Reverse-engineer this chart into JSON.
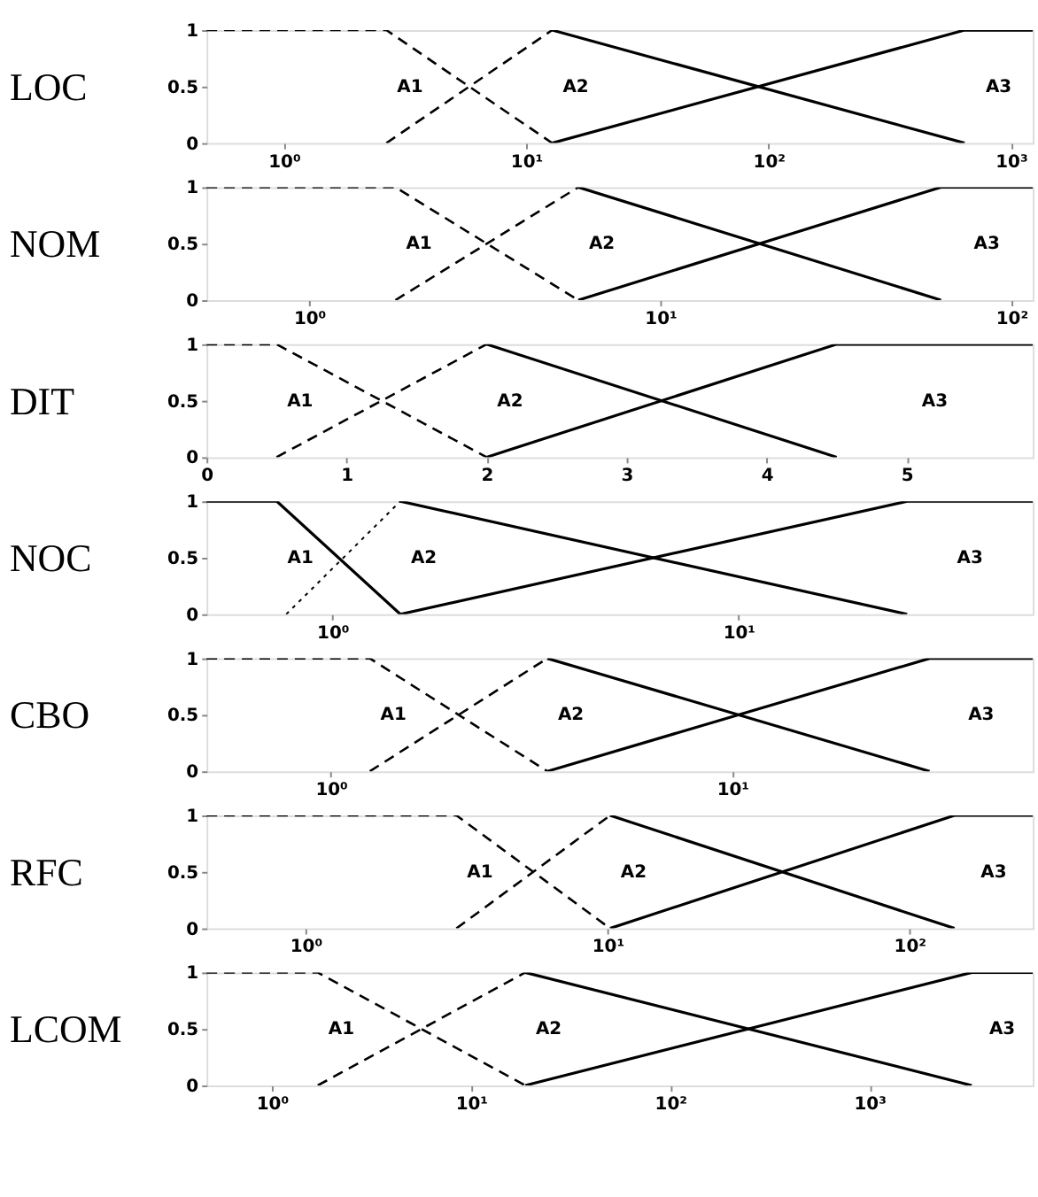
{
  "chart_data": [
    {
      "type": "line",
      "ylabel": "LOC",
      "log": "x",
      "xlim": [
        0.48,
        1230
      ],
      "ylim": [
        0,
        1
      ],
      "yticks": [
        0,
        0.5,
        1
      ],
      "grid": false,
      "xticks": [
        {
          "value": 1,
          "label": "10⁰"
        },
        {
          "value": 10,
          "label": "10¹"
        },
        {
          "value": 100,
          "label": "10²"
        },
        {
          "value": 1000,
          "label": "10³"
        }
      ],
      "series": [
        {
          "color": "#000000",
          "line_style": "dashed",
          "x": [
            0.48,
            2.65,
            12.8
          ],
          "values": [
            1,
            1,
            0
          ]
        },
        {
          "color": "#000000",
          "line_style": "dashed",
          "x": [
            2.65,
            12.8
          ],
          "values": [
            0,
            1
          ]
        },
        {
          "color": "#000000",
          "line_style": "solid",
          "x": [
            12.8,
            644
          ],
          "values": [
            1,
            0
          ]
        },
        {
          "color": "#000000",
          "line_style": "solid",
          "x": [
            12.8,
            644,
            1230
          ],
          "values": [
            0,
            1,
            1
          ]
        }
      ],
      "annotations": [
        "A1",
        "A2",
        "A3"
      ]
    },
    {
      "type": "line",
      "ylabel": "NOM",
      "log": "x",
      "xlim": [
        0.51,
        115
      ],
      "ylim": [
        0,
        1
      ],
      "yticks": [
        0,
        0.5,
        1
      ],
      "grid": false,
      "xticks": [
        {
          "value": 1,
          "label": "10⁰"
        },
        {
          "value": 10,
          "label": "10¹"
        },
        {
          "value": 100,
          "label": "10²"
        }
      ],
      "series": [
        {
          "color": "#000000",
          "line_style": "dashed",
          "x": [
            0.51,
            1.76,
            5.84
          ],
          "values": [
            1,
            1,
            0
          ]
        },
        {
          "color": "#000000",
          "line_style": "dashed",
          "x": [
            1.76,
            5.84
          ],
          "values": [
            0,
            1
          ]
        },
        {
          "color": "#000000",
          "line_style": "solid",
          "x": [
            5.84,
            63
          ],
          "values": [
            1,
            0
          ]
        },
        {
          "color": "#000000",
          "line_style": "solid",
          "x": [
            5.84,
            63,
            115
          ],
          "values": [
            0,
            1,
            1
          ]
        }
      ],
      "annotations": [
        "A1",
        "A2",
        "A3"
      ]
    },
    {
      "type": "line",
      "ylabel": "DIT",
      "xlim": [
        0,
        5.9
      ],
      "ylim": [
        0,
        1
      ],
      "yticks": [
        0,
        0.5,
        1
      ],
      "grid": false,
      "xticks": [
        0,
        1,
        2,
        3,
        4,
        5
      ],
      "series": [
        {
          "color": "#000000",
          "line_style": "dashed",
          "x": [
            0,
            0.5,
            2
          ],
          "values": [
            1,
            1,
            0
          ]
        },
        {
          "color": "#000000",
          "line_style": "dashed",
          "x": [
            0.5,
            2
          ],
          "values": [
            0,
            1
          ]
        },
        {
          "color": "#000000",
          "line_style": "solid",
          "x": [
            2,
            4.5
          ],
          "values": [
            1,
            0
          ]
        },
        {
          "color": "#000000",
          "line_style": "solid",
          "x": [
            2,
            4.5,
            5.9
          ],
          "values": [
            0,
            1,
            1
          ]
        }
      ],
      "annotations": [
        "A1",
        "A2",
        "A3"
      ]
    },
    {
      "type": "line",
      "ylabel": "NOC",
      "log": "x",
      "xlim": [
        0.49,
        53
      ],
      "ylim": [
        0,
        1
      ],
      "yticks": [
        0,
        0.5,
        1
      ],
      "grid": false,
      "xticks": [
        {
          "value": 1,
          "label": "10⁰"
        },
        {
          "value": 10,
          "label": "10¹"
        }
      ],
      "series": [
        {
          "color": "#000000",
          "line_style": "solid",
          "x": [
            0.49,
            0.73,
            1.47
          ],
          "values": [
            1,
            1,
            0
          ]
        },
        {
          "color": "#000000",
          "line_style": "dotted",
          "x": [
            0.77,
            1.47
          ],
          "values": [
            0,
            1
          ]
        },
        {
          "color": "#000000",
          "line_style": "solid",
          "x": [
            1.47,
            26
          ],
          "values": [
            1,
            0
          ]
        },
        {
          "color": "#000000",
          "line_style": "solid",
          "x": [
            1.47,
            26,
            53
          ],
          "values": [
            0,
            1,
            1
          ]
        }
      ],
      "annotations": [
        "A1",
        "A2",
        "A3"
      ]
    },
    {
      "type": "line",
      "ylabel": "CBO",
      "log": "x",
      "xlim": [
        0.49,
        56
      ],
      "ylim": [
        0,
        1
      ],
      "yticks": [
        0,
        0.5,
        1
      ],
      "grid": false,
      "xticks": [
        {
          "value": 1,
          "label": "10⁰"
        },
        {
          "value": 10,
          "label": "10¹"
        }
      ],
      "series": [
        {
          "color": "#000000",
          "line_style": "dashed",
          "x": [
            0.49,
            1.25,
            3.46
          ],
          "values": [
            1,
            1,
            0
          ]
        },
        {
          "color": "#000000",
          "line_style": "dashed",
          "x": [
            1.25,
            3.46
          ],
          "values": [
            0,
            1
          ]
        },
        {
          "color": "#000000",
          "line_style": "solid",
          "x": [
            3.46,
            31
          ],
          "values": [
            1,
            0
          ]
        },
        {
          "color": "#000000",
          "line_style": "solid",
          "x": [
            3.46,
            31,
            56
          ],
          "values": [
            0,
            1,
            1
          ]
        }
      ],
      "annotations": [
        "A1",
        "A2",
        "A3"
      ]
    },
    {
      "type": "line",
      "ylabel": "RFC",
      "log": "x",
      "xlim": [
        0.47,
        256
      ],
      "ylim": [
        0,
        1
      ],
      "yticks": [
        0,
        0.5,
        1
      ],
      "grid": false,
      "xticks": [
        {
          "value": 1,
          "label": "10⁰"
        },
        {
          "value": 10,
          "label": "10¹"
        },
        {
          "value": 100,
          "label": "10²"
        }
      ],
      "series": [
        {
          "color": "#000000",
          "line_style": "dashed",
          "x": [
            0.47,
            3.16,
            10.2
          ],
          "values": [
            1,
            1,
            0
          ]
        },
        {
          "color": "#000000",
          "line_style": "dashed",
          "x": [
            3.16,
            10.2
          ],
          "values": [
            0,
            1
          ]
        },
        {
          "color": "#000000",
          "line_style": "solid",
          "x": [
            10.2,
            141
          ],
          "values": [
            1,
            0
          ]
        },
        {
          "color": "#000000",
          "line_style": "solid",
          "x": [
            10.2,
            141,
            256
          ],
          "values": [
            0,
            1,
            1
          ]
        }
      ],
      "annotations": [
        "A1",
        "A2",
        "A3"
      ]
    },
    {
      "type": "line",
      "ylabel": "LCOM",
      "log": "x",
      "xlim": [
        0.47,
        6600
      ],
      "ylim": [
        0,
        1
      ],
      "yticks": [
        0,
        0.5,
        1
      ],
      "grid": false,
      "xticks": [
        {
          "value": 1,
          "label": "10⁰"
        },
        {
          "value": 10,
          "label": "10¹"
        },
        {
          "value": 100,
          "label": "10²"
        },
        {
          "value": 1000,
          "label": "10³"
        }
      ],
      "series": [
        {
          "color": "#000000",
          "line_style": "dashed",
          "x": [
            0.47,
            1.7,
            18.7
          ],
          "values": [
            1,
            1,
            0
          ]
        },
        {
          "color": "#000000",
          "line_style": "dashed",
          "x": [
            1.7,
            18.7
          ],
          "values": [
            0,
            1
          ]
        },
        {
          "color": "#000000",
          "line_style": "solid",
          "x": [
            18.7,
            3260
          ],
          "values": [
            1,
            0
          ]
        },
        {
          "color": "#000000",
          "line_style": "solid",
          "x": [
            18.7,
            3260,
            6600
          ],
          "values": [
            0,
            1,
            1
          ]
        }
      ],
      "annotations": [
        "A1",
        "A2",
        "A3"
      ]
    }
  ]
}
